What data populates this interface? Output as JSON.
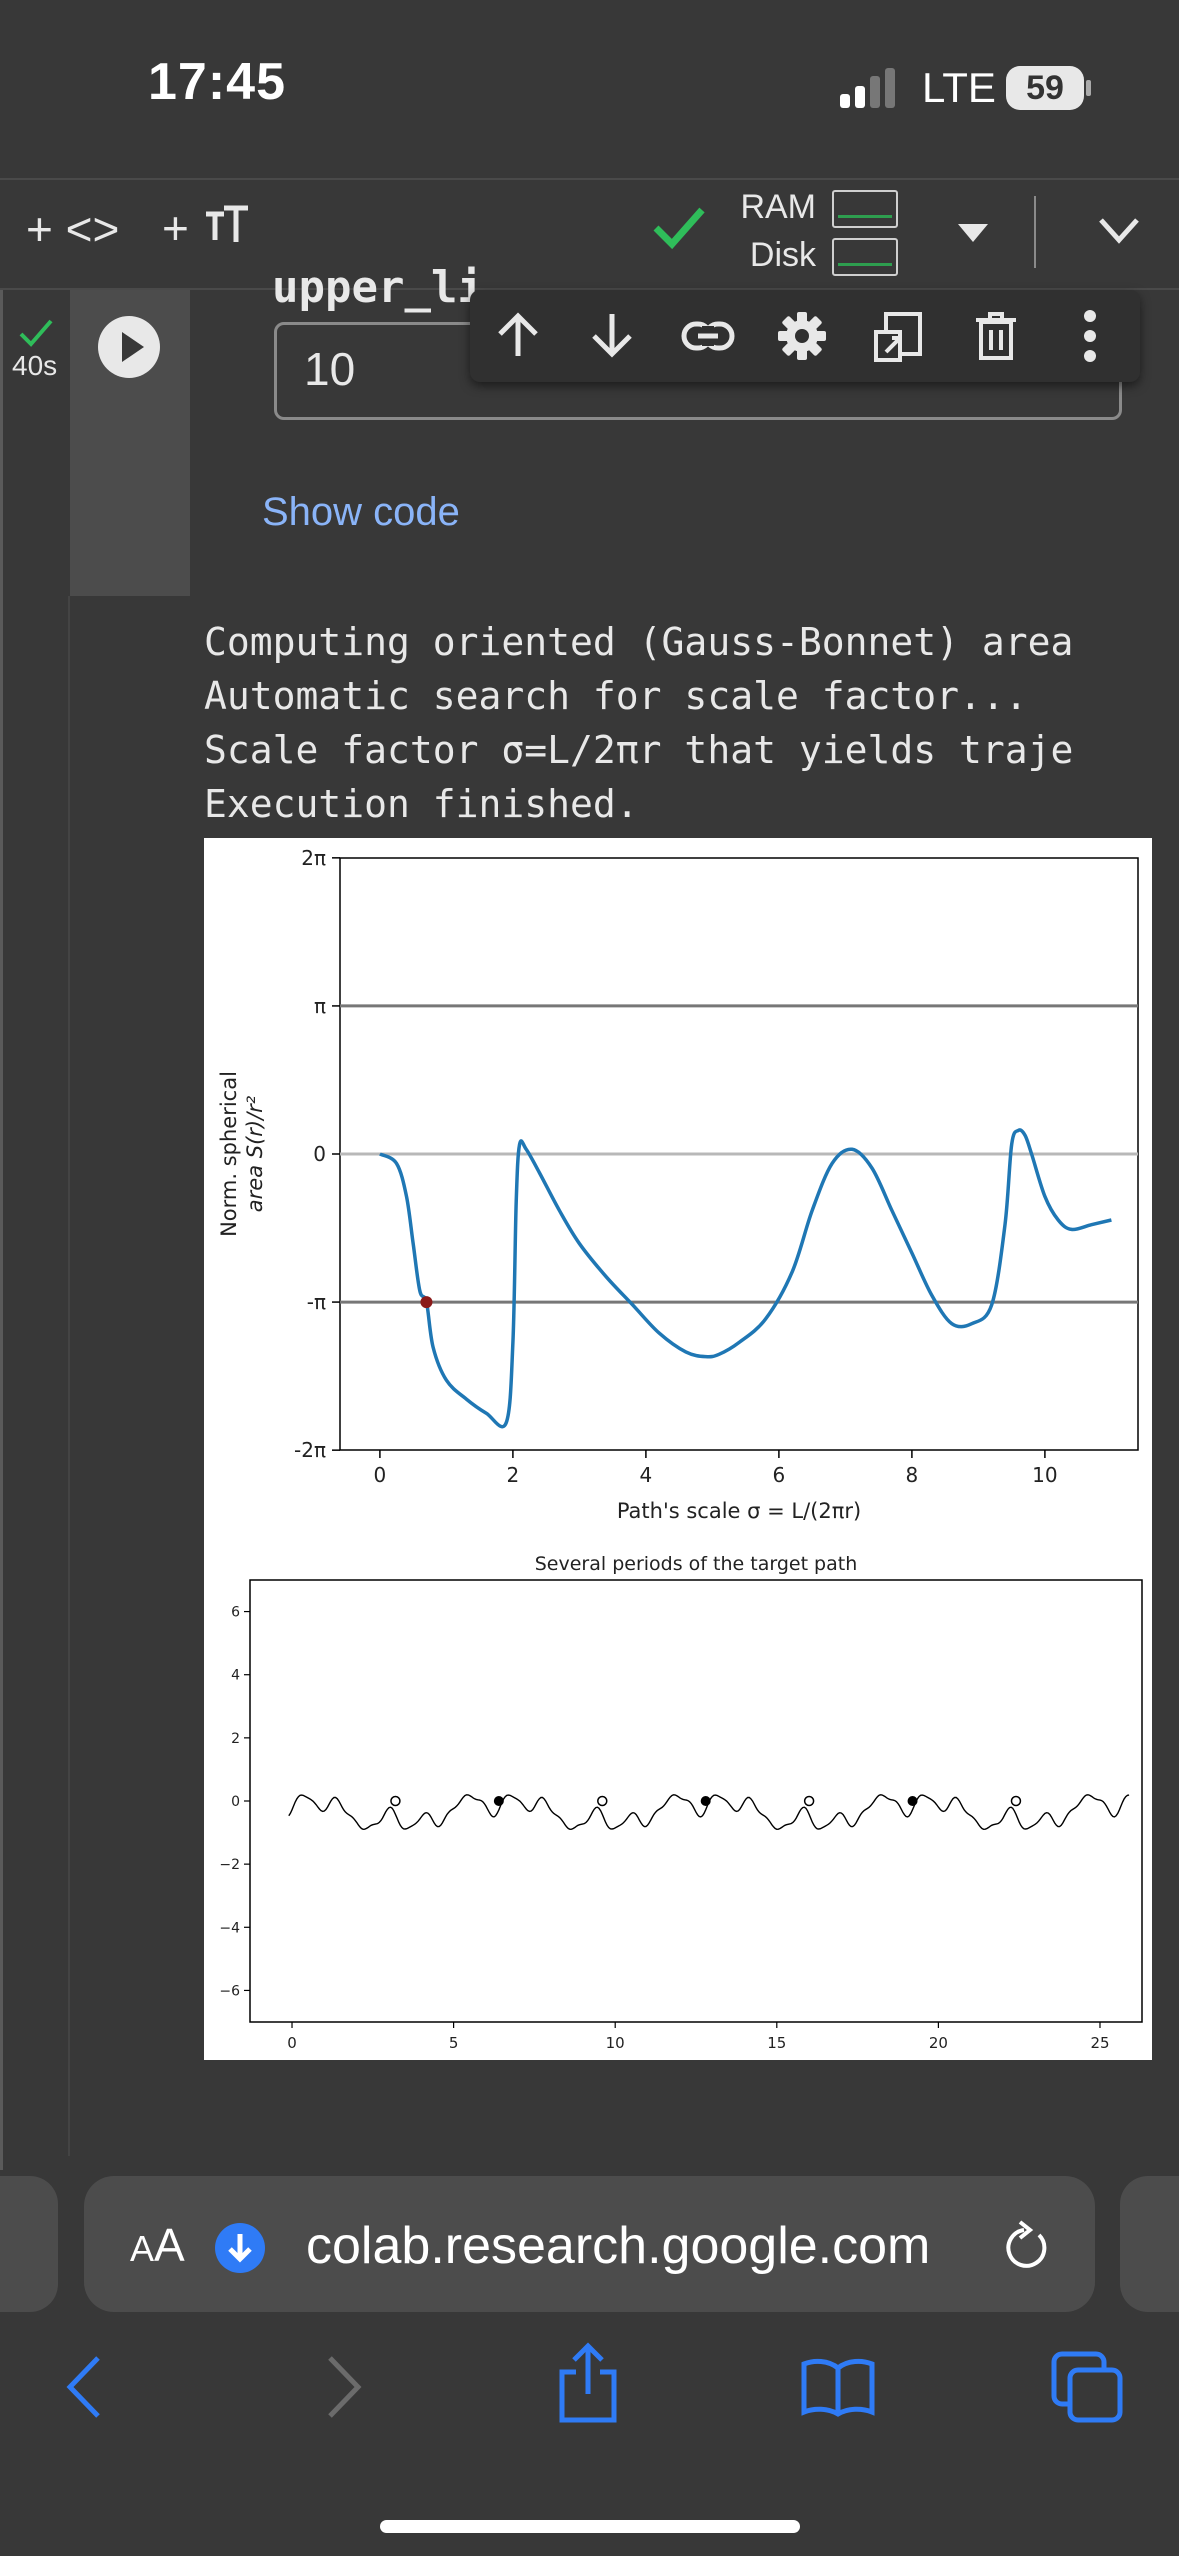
{
  "status_bar": {
    "time": "17:45",
    "network": "LTE",
    "battery": "59"
  },
  "toolbar": {
    "add_code": "+ <>",
    "add_text": "+ ",
    "ram_label": "RAM",
    "disk_label": "Disk"
  },
  "cell": {
    "run_time": "40s",
    "form_label": "upper_li",
    "form_value": "10",
    "show_code": "Show code"
  },
  "output": {
    "lines": [
      "Computing oriented (Gauss-Bonnet) area",
      "Automatic search for scale factor...",
      "Scale factor σ=L/2πr that yields traje",
      "Execution finished."
    ]
  },
  "chart_data": [
    {
      "type": "line",
      "title": "",
      "xlabel": "Path's scale σ = L/(2πr)",
      "ylabel": "Norm. spherical area S(r)/r²",
      "xlim": [
        -0.6,
        11.4
      ],
      "ylim": [
        -6.28,
        6.28
      ],
      "xticks": [
        "0",
        "2",
        "4",
        "6",
        "8",
        "10"
      ],
      "yticks": [
        "2π",
        "π",
        "0",
        "-π",
        "-2π"
      ],
      "reference_lines": [
        3.14159,
        0,
        -3.14159
      ],
      "series": [
        {
          "color": "#1f77b4",
          "x": [
            0,
            0.25,
            0.4,
            0.5,
            0.6,
            0.7,
            0.8,
            1.0,
            1.3,
            1.6,
            1.9,
            2.0,
            2.05,
            2.1,
            2.2,
            2.4,
            2.7,
            3.0,
            3.4,
            3.8,
            4.2,
            4.6,
            4.9,
            5.1,
            5.4,
            5.8,
            6.2,
            6.5,
            6.8,
            7.1,
            7.4,
            7.7,
            8.0,
            8.3,
            8.6,
            8.9,
            9.2,
            9.4,
            9.5,
            9.6,
            9.7,
            9.8,
            10.0,
            10.2,
            10.4,
            10.7,
            11.0
          ],
          "y": [
            0,
            -0.2,
            -0.9,
            -1.9,
            -2.9,
            -3.14,
            -4.1,
            -4.8,
            -5.2,
            -5.5,
            -5.7,
            -4.0,
            -1.0,
            0.2,
            0.1,
            -0.4,
            -1.2,
            -1.9,
            -2.6,
            -3.2,
            -3.8,
            -4.2,
            -4.3,
            -4.25,
            -4.0,
            -3.5,
            -2.5,
            -1.2,
            -0.2,
            0.1,
            -0.3,
            -1.2,
            -2.1,
            -3.0,
            -3.6,
            -3.6,
            -3.2,
            -1.5,
            0.2,
            0.5,
            0.4,
            0.0,
            -0.9,
            -1.4,
            -1.6,
            -1.5,
            -1.4
          ]
        }
      ],
      "markers": [
        {
          "x": 0.7,
          "y": -3.14159,
          "color": "#8b1a1a"
        }
      ]
    },
    {
      "type": "line",
      "title": "Several periods of the target path",
      "xlim": [
        -1.3,
        26.3
      ],
      "ylim": [
        -7,
        7
      ],
      "xticks": [
        "0",
        "5",
        "10",
        "15",
        "20",
        "25"
      ],
      "yticks": [
        "6",
        "4",
        "2",
        "0",
        "−2",
        "−4",
        "−6"
      ],
      "period": 6.4,
      "open_markers_x": [
        3.2,
        9.6,
        16.0,
        22.4
      ],
      "filled_markers_x": [
        6.4,
        12.8,
        19.2
      ]
    }
  ]
}
